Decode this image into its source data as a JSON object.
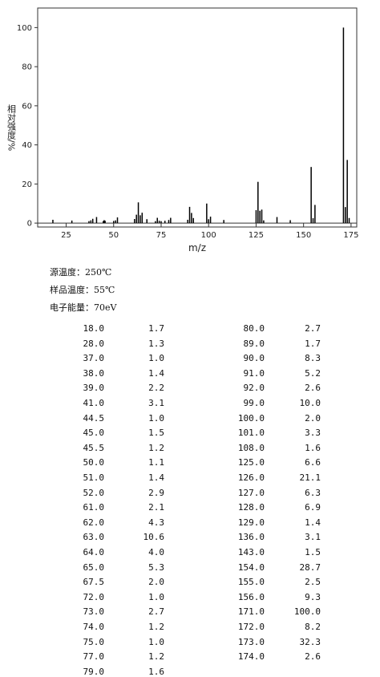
{
  "chart_data": {
    "type": "bar",
    "xlabel": "m/z",
    "ylabel": "相对强度/%",
    "color": "#000000",
    "x": [
      18.0,
      28.0,
      37.0,
      38.0,
      39.0,
      41.0,
      44.5,
      45.0,
      45.5,
      50.0,
      51.0,
      52.0,
      61.0,
      62.0,
      63.0,
      64.0,
      65.0,
      67.5,
      72.0,
      73.0,
      74.0,
      75.0,
      77.0,
      79.0,
      80.0,
      89.0,
      90.0,
      91.0,
      92.0,
      99.0,
      100.0,
      101.0,
      108.0,
      125.0,
      126.0,
      127.0,
      128.0,
      129.0,
      136.0,
      143.0,
      154.0,
      155.0,
      156.0,
      171.0,
      172.0,
      173.0,
      174.0
    ],
    "values": [
      1.7,
      1.3,
      1.0,
      1.4,
      2.2,
      3.1,
      1.0,
      1.5,
      1.2,
      1.1,
      1.4,
      2.9,
      2.1,
      4.3,
      10.6,
      4.0,
      5.3,
      2.0,
      1.0,
      2.7,
      1.2,
      1.0,
      1.2,
      1.6,
      2.7,
      1.7,
      8.3,
      5.2,
      2.6,
      10.0,
      2.0,
      3.3,
      1.6,
      6.6,
      21.1,
      6.3,
      6.9,
      1.4,
      3.1,
      1.5,
      28.7,
      2.5,
      9.3,
      100.0,
      8.2,
      32.3,
      2.6
    ],
    "xlim": [
      10,
      178
    ],
    "ylim": [
      -2,
      110
    ],
    "xticks": [
      25,
      50,
      75,
      100,
      125,
      150,
      175
    ],
    "yticks": [
      0,
      20,
      40,
      60,
      80,
      100
    ]
  },
  "info": [
    "源温度：250℃",
    "样品温度：55℃",
    "电子能量：70eV"
  ],
  "table": {
    "rows": [
      [
        "18.0",
        "1.7"
      ],
      [
        "28.0",
        "1.3"
      ],
      [
        "37.0",
        "1.0"
      ],
      [
        "38.0",
        "1.4"
      ],
      [
        "39.0",
        "2.2"
      ],
      [
        "41.0",
        "3.1"
      ],
      [
        "44.5",
        "1.0"
      ],
      [
        "45.0",
        "1.5"
      ],
      [
        "45.5",
        "1.2"
      ],
      [
        "50.0",
        "1.1"
      ],
      [
        "51.0",
        "1.4"
      ],
      [
        "52.0",
        "2.9"
      ],
      [
        "61.0",
        "2.1"
      ],
      [
        "62.0",
        "4.3"
      ],
      [
        "63.0",
        "10.6"
      ],
      [
        "64.0",
        "4.0"
      ],
      [
        "65.0",
        "5.3"
      ],
      [
        "67.5",
        "2.0"
      ],
      [
        "72.0",
        "1.0"
      ],
      [
        "73.0",
        "2.7"
      ],
      [
        "74.0",
        "1.2"
      ],
      [
        "75.0",
        "1.0"
      ],
      [
        "77.0",
        "1.2"
      ],
      [
        "79.0",
        "1.6"
      ],
      [
        "80.0",
        "2.7"
      ],
      [
        "89.0",
        "1.7"
      ],
      [
        "90.0",
        "8.3"
      ],
      [
        "91.0",
        "5.2"
      ],
      [
        "92.0",
        "2.6"
      ],
      [
        "99.0",
        "10.0"
      ],
      [
        "100.0",
        "2.0"
      ],
      [
        "101.0",
        "3.3"
      ],
      [
        "108.0",
        "1.6"
      ],
      [
        "125.0",
        "6.6"
      ],
      [
        "126.0",
        "21.1"
      ],
      [
        "127.0",
        "6.3"
      ],
      [
        "128.0",
        "6.9"
      ],
      [
        "129.0",
        "1.4"
      ],
      [
        "136.0",
        "3.1"
      ],
      [
        "143.0",
        "1.5"
      ],
      [
        "154.0",
        "28.7"
      ],
      [
        "155.0",
        "2.5"
      ],
      [
        "156.0",
        "9.3"
      ],
      [
        "171.0",
        "100.0"
      ],
      [
        "172.0",
        "8.2"
      ],
      [
        "173.0",
        "32.3"
      ],
      [
        "174.0",
        "2.6"
      ]
    ]
  }
}
